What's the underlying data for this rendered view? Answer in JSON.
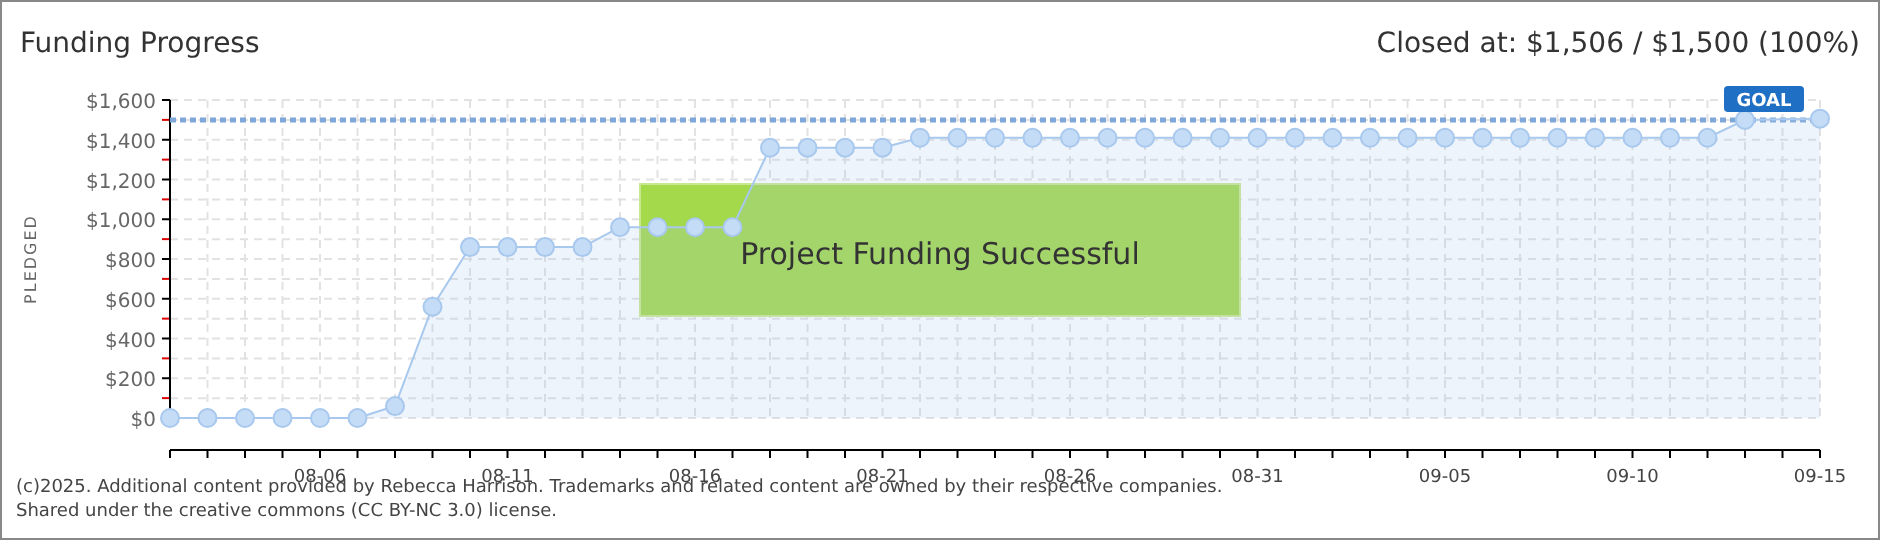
{
  "chart_data": {
    "type": "area",
    "title": "Funding Progress",
    "subtitle": "Closed at: $1,506 / $1,500 (100%)",
    "ylabel": "PLEDGED",
    "x": [
      "--08-02",
      "--08-03",
      "--08-04",
      "--08-05",
      "--08-06",
      "--08-07",
      "--08-08",
      "--08-09",
      "--08-10",
      "--08-11",
      "--08-12",
      "--08-13",
      "--08-14",
      "--08-15",
      "--08-16",
      "--08-17",
      "--08-18",
      "--08-19",
      "--08-20",
      "--08-21",
      "--08-22",
      "--08-23",
      "--08-24",
      "--08-25",
      "--08-26",
      "--08-27",
      "--08-28",
      "--08-29",
      "--08-30",
      "--08-31",
      "--09-01",
      "--09-02",
      "--09-03",
      "--09-04",
      "--09-05",
      "--09-06",
      "--09-07",
      "--09-08",
      "--09-09",
      "--09-10",
      "--09-11",
      "--09-12",
      "--09-13",
      "--09-15"
    ],
    "series": [
      {
        "color": "#a8c8ee",
        "values": [
          0,
          0,
          0,
          0,
          0,
          0,
          60,
          560,
          860,
          860,
          860,
          860,
          960,
          960,
          960,
          960,
          1360,
          1360,
          1360,
          1360,
          1410,
          1410,
          1410,
          1410,
          1410,
          1410,
          1410,
          1410,
          1410,
          1410,
          1410,
          1410,
          1410,
          1410,
          1410,
          1410,
          1410,
          1410,
          1410,
          1410,
          1410,
          1410,
          1500,
          1506
        ]
      }
    ],
    "marker": "circle",
    "grid": true,
    "xlim": [
      "--08-02",
      "--09-15"
    ],
    "xticks": [
      {
        "value": "--08-02",
        "label": null
      },
      {
        "value": "--08-03",
        "label": null
      },
      {
        "value": "--08-04",
        "label": null
      },
      {
        "value": "--08-05",
        "label": null
      },
      {
        "value": "--08-06",
        "label": "08-06"
      },
      {
        "value": "--08-07",
        "label": null
      },
      {
        "value": "--08-08",
        "label": null
      },
      {
        "value": "--08-09",
        "label": null
      },
      {
        "value": "--08-10",
        "label": null
      },
      {
        "value": "--08-11",
        "label": "08-11"
      },
      {
        "value": "--08-12",
        "label": null
      },
      {
        "value": "--08-13",
        "label": null
      },
      {
        "value": "--08-14",
        "label": null
      },
      {
        "value": "--08-15",
        "label": null
      },
      {
        "value": "--08-16",
        "label": "08-16"
      },
      {
        "value": "--08-17",
        "label": null
      },
      {
        "value": "--08-18",
        "label": null
      },
      {
        "value": "--08-19",
        "label": null
      },
      {
        "value": "--08-20",
        "label": null
      },
      {
        "value": "--08-21",
        "label": "08-21"
      },
      {
        "value": "--08-22",
        "label": null
      },
      {
        "value": "--08-23",
        "label": null
      },
      {
        "value": "--08-24",
        "label": null
      },
      {
        "value": "--08-25",
        "label": null
      },
      {
        "value": "--08-26",
        "label": "08-26"
      },
      {
        "value": "--08-27",
        "label": null
      },
      {
        "value": "--08-28",
        "label": null
      },
      {
        "value": "--08-29",
        "label": null
      },
      {
        "value": "--08-30",
        "label": null
      },
      {
        "value": "--08-31",
        "label": "08-31"
      },
      {
        "value": "--09-01",
        "label": null
      },
      {
        "value": "--09-02",
        "label": null
      },
      {
        "value": "--09-03",
        "label": null
      },
      {
        "value": "--09-04",
        "label": null
      },
      {
        "value": "--09-05",
        "label": "09-05"
      },
      {
        "value": "--09-06",
        "label": null
      },
      {
        "value": "--09-07",
        "label": null
      },
      {
        "value": "--09-08",
        "label": null
      },
      {
        "value": "--09-09",
        "label": null
      },
      {
        "value": "--09-10",
        "label": "09-10"
      },
      {
        "value": "--09-11",
        "label": null
      },
      {
        "value": "--09-12",
        "label": null
      },
      {
        "value": "--09-13",
        "label": null
      },
      {
        "value": "--09-14",
        "label": null
      },
      {
        "value": "--09-15",
        "label": "09-15"
      }
    ],
    "ylim": [
      0,
      1600
    ],
    "yticks": [
      {
        "value": 0,
        "label": "$0"
      },
      {
        "value": 100,
        "label": null
      },
      {
        "value": 200,
        "label": "$200"
      },
      {
        "value": 300,
        "label": null
      },
      {
        "value": 400,
        "label": "$400"
      },
      {
        "value": 500,
        "label": null
      },
      {
        "value": 600,
        "label": "$600"
      },
      {
        "value": 700,
        "label": null
      },
      {
        "value": 800,
        "label": "$800"
      },
      {
        "value": 900,
        "label": null
      },
      {
        "value": 1000,
        "label": "$1,000"
      },
      {
        "value": 1100,
        "label": null
      },
      {
        "value": 1200,
        "label": "$1,200"
      },
      {
        "value": 1300,
        "label": null
      },
      {
        "value": 1400,
        "label": "$1,400"
      },
      {
        "value": 1500,
        "label": null
      },
      {
        "value": 1600,
        "label": "$1,600"
      }
    ],
    "ref_lines": [
      {
        "axis": "y",
        "value": 1500,
        "label": "GOAL",
        "color": "#7fa8d8",
        "line_style": "dotted"
      }
    ],
    "annotations": [
      "Project Funding Successful",
      "(c)2025. Additional content provided by Rebecca Harrison. Trademarks and related content are owned by their respective companies.",
      "Shared under the creative commons (CC BY-NC 3.0) license."
    ]
  }
}
